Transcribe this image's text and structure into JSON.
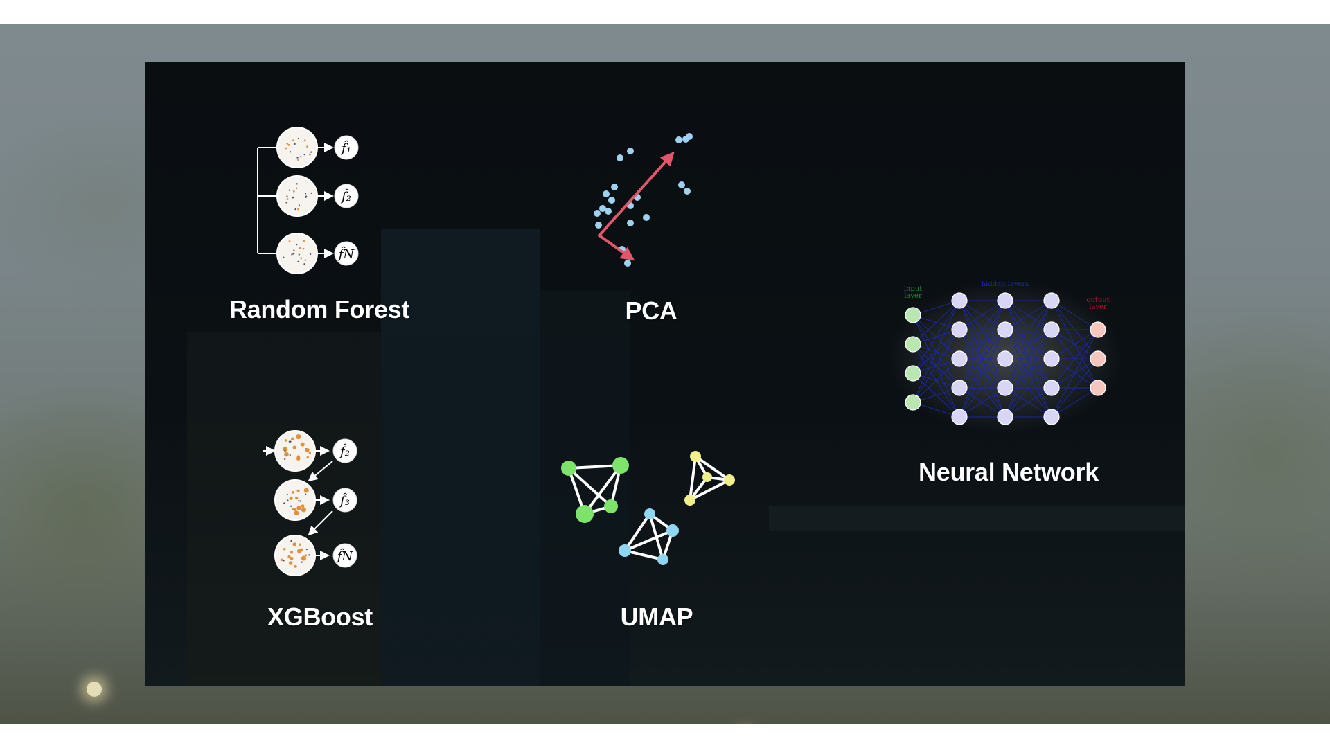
{
  "slide": {
    "methods": [
      {
        "id": "random-forest",
        "label": "Random Forest"
      },
      {
        "id": "pca",
        "label": "PCA"
      },
      {
        "id": "neural-network",
        "label": "Neural Network"
      },
      {
        "id": "xgboost",
        "label": "XGBoost"
      },
      {
        "id": "umap",
        "label": "UMAP"
      }
    ],
    "random_forest": {
      "outputs": [
        "f̂₁",
        "f̂₂",
        "f̂N"
      ]
    },
    "xgboost": {
      "outputs": [
        "f̂₂",
        "f̂₃",
        "f̂N"
      ]
    },
    "neural_network": {
      "input_label_1": "input",
      "input_label_2": "layer",
      "hidden_label": "hidden layers",
      "output_label_1": "output",
      "output_label_2": "layer"
    },
    "colors": {
      "panel": "#0b1014",
      "pca_arrow": "#e0566a",
      "pca_points": "#9fd0f0",
      "umap_green": "#7ee36a",
      "umap_yellow": "#f2ef8a",
      "umap_blue": "#8fd6f2",
      "nn_input": "#b8e8b0",
      "nn_hidden": "#d9d6f5",
      "nn_output": "#f6c6bc",
      "nn_edges": "#1a2aa8"
    }
  }
}
